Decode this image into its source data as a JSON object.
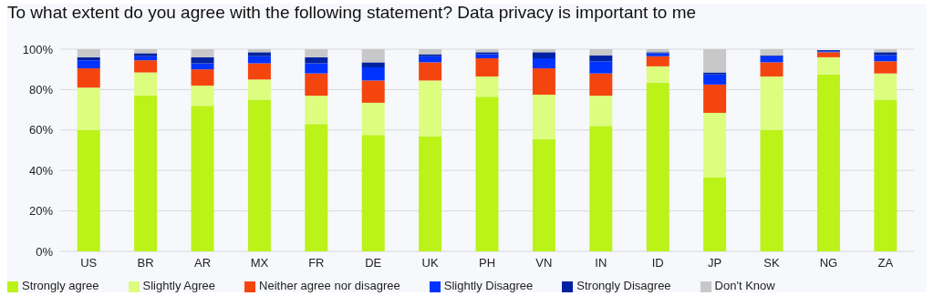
{
  "chart_data": {
    "type": "bar",
    "stacked": true,
    "title": "To what extent do you agree with the following statement? Data privacy is important to me",
    "categories": [
      "US",
      "BR",
      "AR",
      "MX",
      "FR",
      "DE",
      "UK",
      "PH",
      "VN",
      "IN",
      "ID",
      "JP",
      "SK",
      "NG",
      "ZA"
    ],
    "series": [
      {
        "name": "Strongly agree",
        "color": "#bbf218",
        "values": [
          60,
          77,
          72,
          75,
          63,
          57.5,
          57,
          76.5,
          55.5,
          62,
          83.5,
          36.5,
          60,
          87.5,
          75
        ]
      },
      {
        "name": "Slightly Agree",
        "color": "#ddfd7f",
        "values": [
          21,
          11.5,
          10,
          10,
          14,
          16,
          27.5,
          10,
          22,
          15,
          8,
          32,
          26.5,
          8.5,
          13
        ]
      },
      {
        "name": "Neither agree nor disagree",
        "color": "#f4450f",
        "values": [
          9.5,
          6,
          8,
          8,
          11,
          11,
          9,
          9,
          13,
          11,
          5,
          14,
          7,
          2.5,
          6
        ]
      },
      {
        "name": "Slightly Disagree",
        "color": "#0033ff",
        "values": [
          4,
          2,
          3,
          3.5,
          5,
          6.5,
          3,
          2,
          5,
          6,
          1.5,
          5,
          3,
          0.5,
          3
        ]
      },
      {
        "name": "Strongly Disagree",
        "color": "#0022a0",
        "values": [
          1.5,
          1.5,
          3,
          2,
          3,
          2.5,
          1,
          1,
          3,
          3,
          0.5,
          1,
          0.5,
          0.5,
          1.5
        ]
      },
      {
        "name": "Don't Know",
        "color": "#c8c8c8",
        "values": [
          4,
          2,
          4,
          1.5,
          4,
          6.5,
          2.5,
          1.5,
          1.5,
          3,
          1.5,
          11.5,
          3,
          null,
          1.5
        ]
      }
    ],
    "ylim": [
      0,
      100
    ],
    "yticks": [
      {
        "value": 0,
        "label": "0%"
      },
      {
        "value": 20,
        "label": "20%"
      },
      {
        "value": 40,
        "label": "40%"
      },
      {
        "value": 60,
        "label": "60%"
      },
      {
        "value": 80,
        "label": "80%"
      },
      {
        "value": 100,
        "label": "100%"
      }
    ],
    "grid": "y",
    "legend": "bottom left"
  }
}
